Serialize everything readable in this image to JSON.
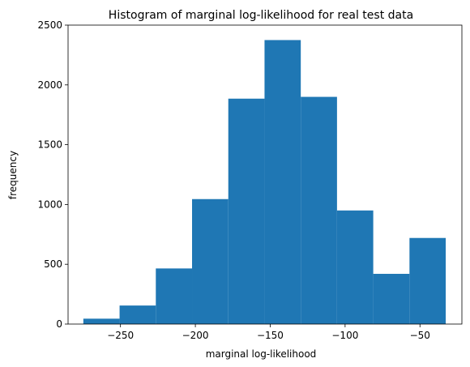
{
  "chart_data": {
    "type": "bar",
    "title": "Histogram of marginal log-likelihood for real test data",
    "xlabel": "marginal log-likelihood",
    "ylabel": "frequency",
    "bin_edges": [
      -274.8,
      -250.6,
      -226.4,
      -202.2,
      -178.0,
      -153.8,
      -129.6,
      -105.4,
      -81.2,
      -57.0,
      -32.8
    ],
    "values": [
      45,
      155,
      465,
      1045,
      1885,
      2375,
      1900,
      950,
      420,
      720
    ],
    "xlim": [
      -285,
      -22
    ],
    "ylim": [
      0,
      2500
    ],
    "xticks": [
      -250,
      -200,
      -150,
      -100,
      -50
    ],
    "xtick_labels": [
      "−250",
      "−200",
      "−150",
      "−100",
      "−50"
    ],
    "yticks": [
      0,
      500,
      1000,
      1500,
      2000,
      2500
    ],
    "ytick_labels": [
      "0",
      "500",
      "1000",
      "1500",
      "2000",
      "2500"
    ],
    "bar_color": "#1f77b4",
    "grid": false,
    "legend": "none"
  }
}
